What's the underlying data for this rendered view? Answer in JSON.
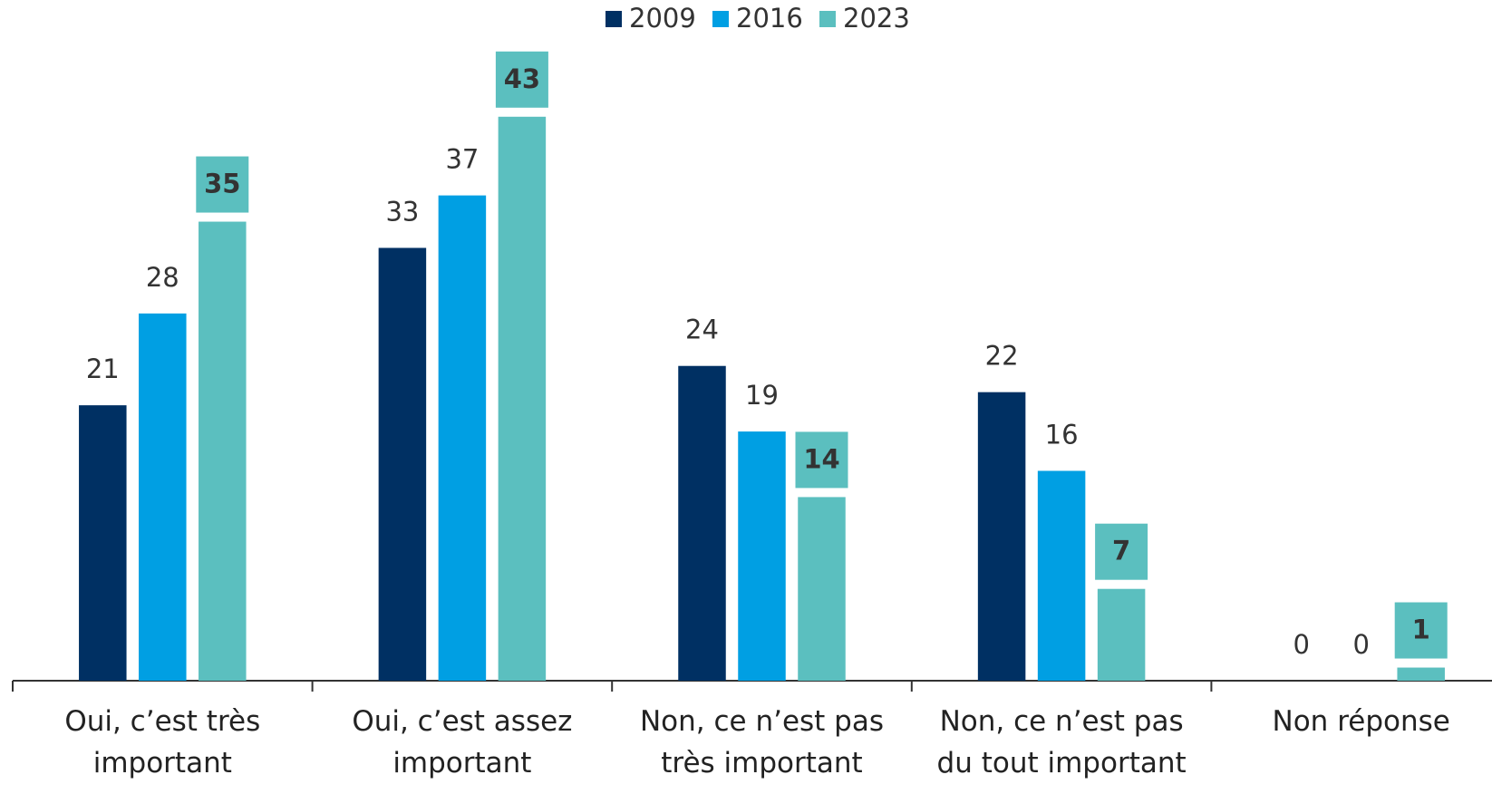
{
  "chart_data": {
    "type": "bar",
    "categories": [
      "Oui, c’est très important",
      "Oui, c’est assez important",
      "Non, ce n’est pas très important",
      "Non, ce n’est pas du tout important",
      "Non réponse"
    ],
    "series": [
      {
        "name": "2009",
        "color": "#003063",
        "values": [
          21,
          33,
          24,
          22,
          0
        ]
      },
      {
        "name": "2016",
        "color": "#009fe3",
        "values": [
          28,
          37,
          19,
          16,
          0
        ]
      },
      {
        "name": "2023",
        "color": "#5bbfbf",
        "values": [
          35,
          43,
          14,
          7,
          1
        ],
        "label_box": true
      }
    ],
    "ylim": [
      0,
      45
    ],
    "legend": "top"
  }
}
